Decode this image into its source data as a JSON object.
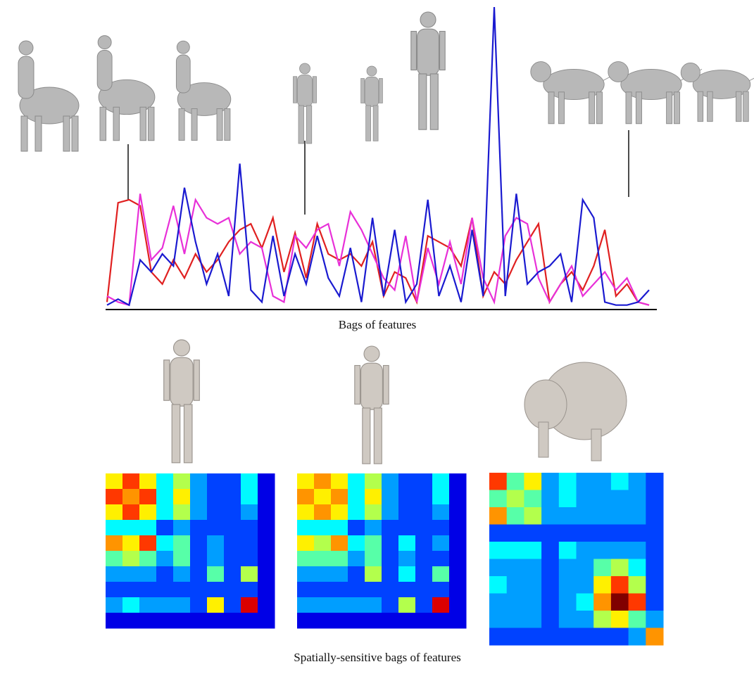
{
  "top_caption": "Bags of features",
  "bottom_caption": "Spatially-sensitive bags of features",
  "line_plot": {
    "ylim": [
      0,
      100
    ],
    "series": [
      {
        "color": "#e02020",
        "values": [
          2,
          35,
          36,
          34,
          12,
          8,
          16,
          10,
          18,
          12,
          16,
          22,
          26,
          28,
          20,
          30,
          12,
          25,
          10,
          28,
          18,
          16,
          18,
          14,
          22,
          4,
          12,
          10,
          2,
          24,
          22,
          20,
          14,
          30,
          4,
          12,
          8,
          16,
          22,
          28,
          2,
          8,
          12,
          6,
          14,
          26,
          4,
          8,
          2,
          1
        ]
      },
      {
        "color": "#e830d8",
        "values": [
          4,
          2,
          1,
          38,
          16,
          20,
          34,
          18,
          36,
          30,
          28,
          30,
          18,
          22,
          20,
          4,
          2,
          24,
          20,
          26,
          28,
          14,
          32,
          26,
          18,
          10,
          6,
          24,
          2,
          20,
          8,
          22,
          8,
          30,
          10,
          2,
          24,
          30,
          28,
          10,
          2,
          8,
          14,
          4,
          8,
          12,
          6,
          10,
          2,
          1
        ]
      },
      {
        "color": "#1a1ad0",
        "values": [
          1,
          3,
          1,
          16,
          12,
          18,
          14,
          40,
          22,
          8,
          18,
          4,
          48,
          6,
          2,
          24,
          4,
          18,
          8,
          24,
          10,
          4,
          20,
          2,
          30,
          4,
          26,
          2,
          8,
          36,
          4,
          14,
          2,
          26,
          4,
          100,
          4,
          38,
          8,
          12,
          14,
          18,
          2,
          36,
          30,
          2,
          1,
          1,
          2,
          6
        ]
      }
    ]
  },
  "heatmaps": [
    {
      "values": [
        [
          6,
          8,
          6,
          3,
          5,
          2,
          1,
          1,
          3,
          0
        ],
        [
          8,
          7,
          8,
          3,
          6,
          2,
          1,
          1,
          3,
          0
        ],
        [
          6,
          8,
          6,
          3,
          5,
          2,
          1,
          1,
          2,
          0
        ],
        [
          3,
          3,
          3,
          1,
          2,
          1,
          1,
          1,
          1,
          0
        ],
        [
          7,
          6,
          8,
          3,
          4,
          1,
          2,
          1,
          1,
          0
        ],
        [
          4,
          5,
          4,
          2,
          4,
          1,
          2,
          1,
          1,
          0
        ],
        [
          2,
          2,
          2,
          1,
          2,
          1,
          4,
          1,
          5,
          0
        ],
        [
          1,
          1,
          1,
          1,
          1,
          1,
          1,
          1,
          1,
          0
        ],
        [
          2,
          3,
          2,
          2,
          2,
          1,
          6,
          1,
          9,
          0
        ],
        [
          0,
          0,
          0,
          0,
          0,
          0,
          0,
          0,
          0,
          0
        ]
      ]
    },
    {
      "values": [
        [
          6,
          7,
          6,
          3,
          5,
          2,
          1,
          1,
          3,
          0
        ],
        [
          7,
          6,
          7,
          3,
          6,
          2,
          1,
          1,
          3,
          0
        ],
        [
          6,
          7,
          6,
          3,
          5,
          2,
          1,
          1,
          2,
          0
        ],
        [
          3,
          3,
          3,
          1,
          2,
          1,
          1,
          1,
          1,
          0
        ],
        [
          6,
          5,
          7,
          3,
          4,
          1,
          3,
          1,
          2,
          0
        ],
        [
          4,
          4,
          4,
          2,
          4,
          1,
          2,
          1,
          1,
          0
        ],
        [
          2,
          2,
          2,
          1,
          5,
          1,
          3,
          1,
          4,
          0
        ],
        [
          1,
          1,
          1,
          1,
          1,
          1,
          1,
          1,
          1,
          0
        ],
        [
          2,
          2,
          2,
          2,
          2,
          1,
          5,
          1,
          9,
          0
        ],
        [
          0,
          0,
          0,
          0,
          0,
          0,
          0,
          0,
          0,
          0
        ]
      ]
    },
    {
      "values": [
        [
          8,
          4,
          6,
          2,
          3,
          2,
          2,
          3,
          2,
          1
        ],
        [
          4,
          5,
          4,
          2,
          3,
          2,
          2,
          2,
          2,
          1
        ],
        [
          7,
          4,
          5,
          2,
          2,
          2,
          2,
          2,
          2,
          1
        ],
        [
          1,
          1,
          1,
          1,
          1,
          1,
          1,
          1,
          1,
          1
        ],
        [
          3,
          3,
          3,
          1,
          3,
          2,
          2,
          2,
          2,
          1
        ],
        [
          2,
          2,
          2,
          1,
          2,
          2,
          4,
          5,
          3,
          1
        ],
        [
          3,
          2,
          2,
          1,
          2,
          2,
          6,
          8,
          5,
          1
        ],
        [
          2,
          2,
          2,
          1,
          2,
          3,
          7,
          10,
          8,
          1
        ],
        [
          2,
          2,
          2,
          1,
          2,
          2,
          5,
          6,
          4,
          2
        ],
        [
          1,
          1,
          1,
          1,
          1,
          1,
          1,
          1,
          2,
          7
        ]
      ]
    }
  ]
}
